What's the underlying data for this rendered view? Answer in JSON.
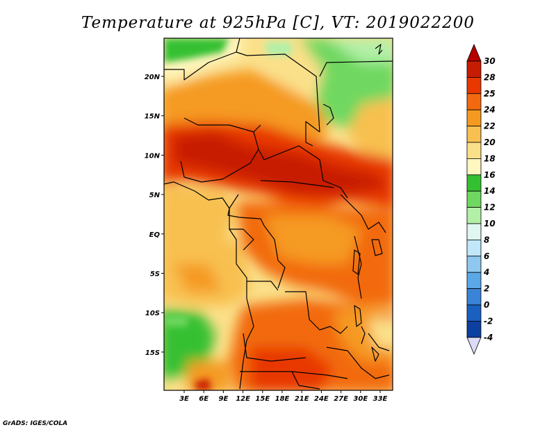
{
  "title": "Temperature at 925hPa [C], VT: 2019022200",
  "credit": "GrADS: IGES/COLA",
  "x_ticks": [
    "3E",
    "6E",
    "9E",
    "12E",
    "15E",
    "18E",
    "21E",
    "24E",
    "27E",
    "30E",
    "33E"
  ],
  "y_ticks": [
    "20N",
    "15N",
    "10N",
    "5N",
    "EQ",
    "5S",
    "10S",
    "15S"
  ],
  "colorbar": {
    "units": "C",
    "levels": [
      "30",
      "28",
      "25",
      "24",
      "22",
      "20",
      "18",
      "16",
      "14",
      "12",
      "10",
      "8",
      "6",
      "4",
      "2",
      "0",
      "-2",
      "-4"
    ],
    "colors": [
      "#c81c00",
      "#e83800",
      "#f26a10",
      "#f59a20",
      "#f8c050",
      "#fbe08a",
      "#fff7c0",
      "#35c032",
      "#6fd860",
      "#b2f0a8",
      "#dff7f0",
      "#c0e8f8",
      "#8ec8f0",
      "#5aa8e8",
      "#3a84d8",
      "#1a60c0",
      "#0c40a0",
      "#061c70"
    ],
    "top_arrow_color": "#b40000",
    "bottom_arrow_color": "#dcdcf8"
  },
  "map": {
    "extent_lon": [
      0,
      35
    ],
    "extent_lat": [
      -19,
      24
    ],
    "projection": "lat-lon",
    "fill_type": "shaded-contour"
  }
}
